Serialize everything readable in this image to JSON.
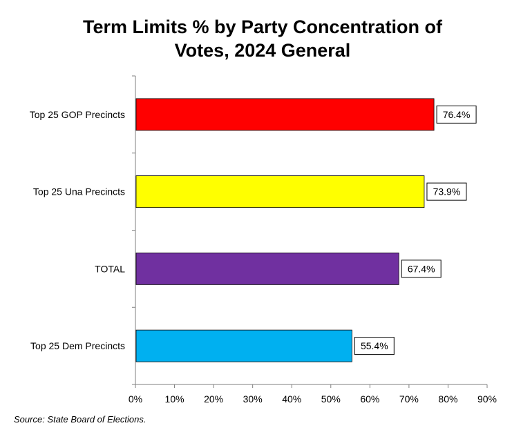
{
  "chart_data": {
    "type": "bar",
    "orientation": "horizontal",
    "title_lines": [
      "Term Limits % by Party Concentration of",
      "Votes, 2024 General"
    ],
    "categories": [
      "Top 25 GOP Precincts",
      "Top 25 Una Precincts",
      "TOTAL",
      "Top 25 Dem Precincts"
    ],
    "values": [
      76.4,
      73.9,
      67.4,
      55.4
    ],
    "data_labels": [
      "76.4%",
      "73.9%",
      "67.4%",
      "55.4%"
    ],
    "bar_colors": [
      "#ff0000",
      "#ffff00",
      "#7030a0",
      "#00b0f0"
    ],
    "x_ticks": [
      0,
      10,
      20,
      30,
      40,
      50,
      60,
      70,
      80,
      90
    ],
    "x_tick_labels": [
      "0%",
      "10%",
      "20%",
      "30%",
      "40%",
      "50%",
      "60%",
      "70%",
      "80%",
      "90%"
    ],
    "xlim": [
      0,
      90
    ],
    "grid": false,
    "legend": "none"
  },
  "source_note": "Source: State Board of Elections."
}
